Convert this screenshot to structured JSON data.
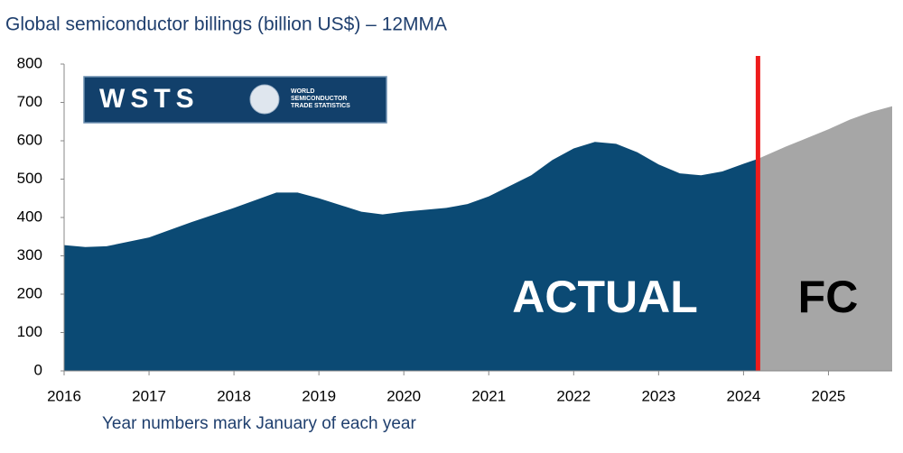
{
  "chart_data": {
    "type": "area",
    "title": "Global semiconductor billings (billion US$) – 12MMA",
    "x_label": "Year numbers mark January of each year",
    "xlim": [
      2016,
      2025.75
    ],
    "xticks": [
      2016,
      2017,
      2018,
      2019,
      2020,
      2021,
      2022,
      2023,
      2024,
      2025
    ],
    "ylim": [
      0,
      800
    ],
    "yticks": [
      0,
      100,
      200,
      300,
      400,
      500,
      600,
      700,
      800
    ],
    "series": [
      {
        "name": "ACTUAL",
        "color": "#0b4a74",
        "x": [
          2016,
          2016.25,
          2016.5,
          2017,
          2017.5,
          2018,
          2018.5,
          2018.75,
          2019,
          2019.5,
          2019.75,
          2020,
          2020.5,
          2020.75,
          2021,
          2021.5,
          2021.75,
          2022,
          2022.25,
          2022.5,
          2022.75,
          2023,
          2023.25,
          2023.5,
          2023.75,
          2024,
          2024.17
        ],
        "values": [
          328,
          323,
          325,
          348,
          388,
          425,
          465,
          465,
          450,
          415,
          408,
          415,
          425,
          435,
          455,
          510,
          550,
          580,
          597,
          592,
          570,
          538,
          515,
          510,
          520,
          540,
          553
        ]
      },
      {
        "name": "FC",
        "color": "#a6a6a6",
        "x": [
          2024.17,
          2024.5,
          2025,
          2025.25,
          2025.5,
          2025.75
        ],
        "values": [
          553,
          585,
          630,
          655,
          675,
          690
        ]
      }
    ],
    "divider_x": 2024.17,
    "divider_color": "#ee1c1c",
    "logo": {
      "name": "WSTS",
      "lines": [
        "WORLD",
        "SEMICONDUCTOR",
        "TRADE STATISTICS"
      ]
    }
  }
}
